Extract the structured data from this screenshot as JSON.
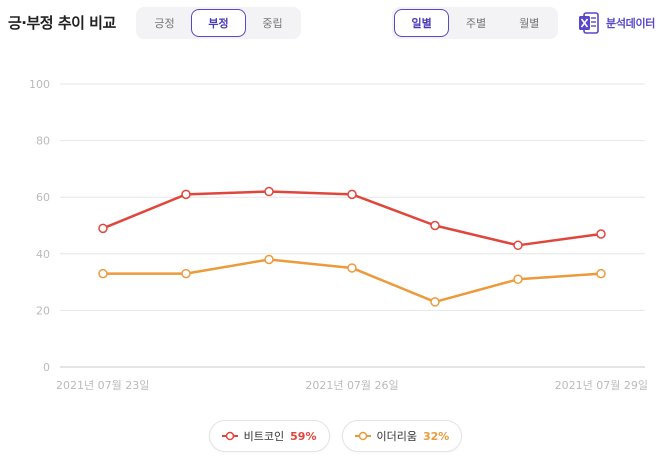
{
  "header": {
    "title": "긍·부정 추이 비교",
    "sentiment_tabs": [
      {
        "label": "긍정",
        "active": false
      },
      {
        "label": "부정",
        "active": true
      },
      {
        "label": "중립",
        "active": false
      }
    ],
    "period_tabs": [
      {
        "label": "일별",
        "active": true
      },
      {
        "label": "주별",
        "active": false
      },
      {
        "label": "월별",
        "active": false
      }
    ],
    "analysis_label": "분석데이터"
  },
  "colors": {
    "accent": "#5a47c9",
    "series1": "#e0463c",
    "series2": "#ec9a3c",
    "grid": "#e6e6e6",
    "axis_text": "#bbbbbb"
  },
  "legend": [
    {
      "name": "비트코인",
      "percent": "59%"
    },
    {
      "name": "이더리움",
      "percent": "32%"
    }
  ],
  "chart_data": {
    "type": "line",
    "x": [
      "2021-07-23",
      "2021-07-24",
      "2021-07-25",
      "2021-07-26",
      "2021-07-27",
      "2021-07-28",
      "2021-07-29"
    ],
    "x_tick_labels": [
      {
        "index": 0,
        "label": "2021년 07월 23일"
      },
      {
        "index": 3,
        "label": "2021년 07월 26일"
      },
      {
        "index": 6,
        "label": "2021년 07월 29일"
      }
    ],
    "y_ticks": [
      0,
      20,
      40,
      60,
      80,
      100
    ],
    "ylim": [
      0,
      100
    ],
    "grid": true,
    "legend_position": "bottom-center",
    "series": [
      {
        "name": "비트코인",
        "values": [
          49,
          61,
          62,
          61,
          50,
          43,
          47
        ]
      },
      {
        "name": "이더리움",
        "values": [
          33,
          33,
          38,
          35,
          23,
          31,
          33
        ]
      }
    ]
  }
}
